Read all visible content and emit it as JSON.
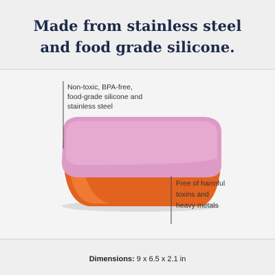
{
  "header": {
    "title_lines": [
      "Made from stainless steel",
      "and food grade silicone."
    ]
  },
  "callouts": [
    {
      "lines": [
        "Non-toxic, BPA-free,",
        "food-grade silicone and",
        "stainless steel"
      ]
    },
    {
      "lines": [
        "Free of harmful",
        "toxins and",
        "heavy metals"
      ]
    }
  ],
  "footer": {
    "label": "Dimensions:",
    "value": "9 x 6.5 x 2.1 in"
  }
}
